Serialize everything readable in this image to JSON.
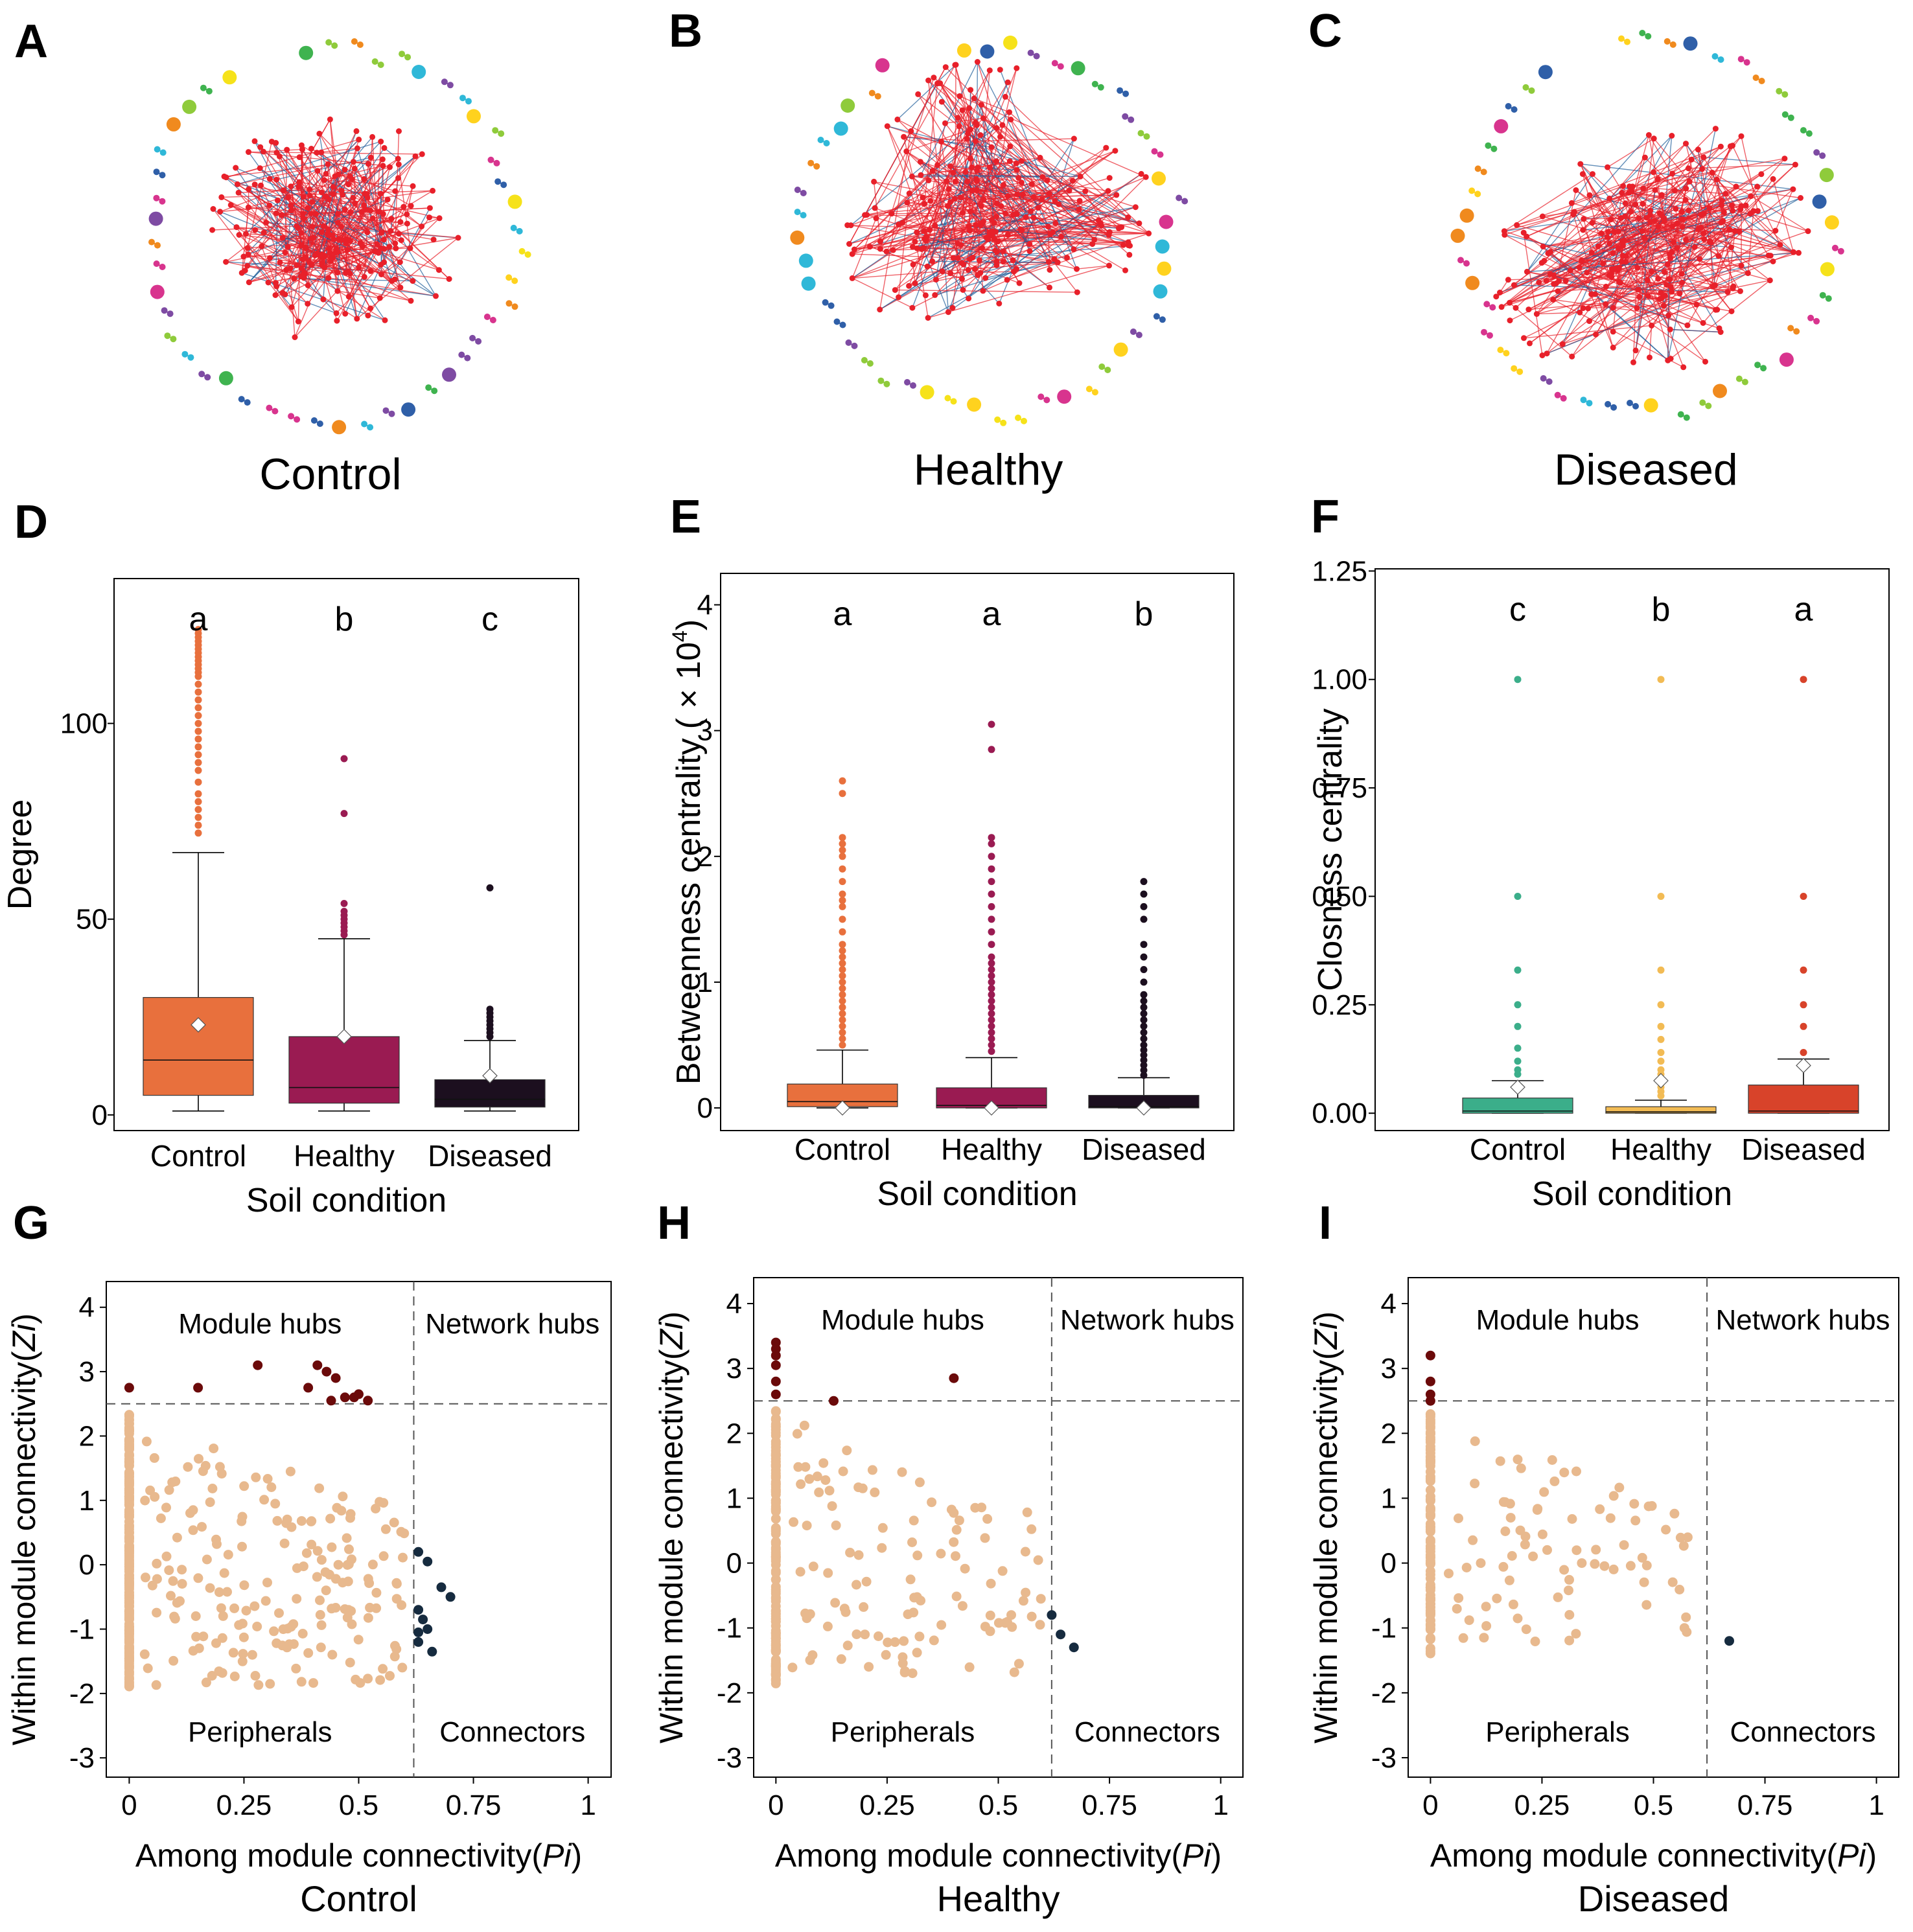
{
  "colors": {
    "control": "#E8703D",
    "healthy": "#9A1B52",
    "diseased": "#1C0F1F",
    "closeness_control": "#3BAE8A",
    "closeness_healthy": "#F2BB54",
    "closeness_diseased": "#D8432A",
    "peripheral": "#E8B98E",
    "module_hub": "#6B0A0A",
    "connector": "#162B3F",
    "network_edge_red": "#E8202A",
    "network_edge_blue": "#1F5E9A"
  },
  "networks": [
    {
      "panel": "A",
      "label": "Control",
      "seed": 11
    },
    {
      "panel": "B",
      "label": "Healthy",
      "seed": 23
    },
    {
      "panel": "C",
      "label": "Diseased",
      "seed": 37
    }
  ],
  "chart_data": [
    {
      "panel": "D",
      "type": "box",
      "categories": [
        "Control",
        "Healthy",
        "Diseased"
      ],
      "xlabel": "Soil condition",
      "ylabel": "Degree",
      "ylim": [
        -4,
        137
      ],
      "yticks": [
        0,
        50,
        100
      ],
      "ytick_labels": [
        "0",
        "50",
        "100"
      ],
      "letters": [
        "a",
        "b",
        "c"
      ],
      "boxes": [
        {
          "q1": 5,
          "median": 14,
          "q3": 30,
          "whisker_low": 1,
          "whisker_high": 67,
          "mean": 23,
          "outliers": [
            72,
            74,
            76,
            78,
            80,
            82,
            85,
            88,
            90,
            92,
            94,
            96,
            98,
            100,
            102,
            104,
            106,
            108,
            110,
            112,
            113,
            114,
            115,
            116,
            117,
            118,
            119,
            120,
            121,
            122,
            123,
            124
          ]
        },
        {
          "q1": 3,
          "median": 7,
          "q3": 20,
          "whisker_low": 1,
          "whisker_high": 45,
          "mean": 20,
          "outliers": [
            46,
            47,
            48,
            49,
            50,
            51,
            52,
            54,
            77,
            91
          ]
        },
        {
          "q1": 2,
          "median": 4,
          "q3": 9,
          "whisker_low": 1,
          "whisker_high": 19,
          "mean": 10,
          "outliers": [
            20,
            21,
            22,
            23,
            24,
            25,
            26,
            27,
            58
          ]
        }
      ]
    },
    {
      "panel": "E",
      "type": "box",
      "categories": [
        "Control",
        "Healthy",
        "Diseased"
      ],
      "xlabel": "Soil condition",
      "ylabel": "Betweenness  centrality",
      "ylabel_suffix": "( × 10",
      "ylabel_exp": "4",
      "ylabel_close": ")",
      "ylim": [
        -0.18,
        4.25
      ],
      "yticks": [
        0,
        1,
        2,
        3,
        4
      ],
      "ytick_labels": [
        "0",
        "1",
        "2",
        "3",
        "4"
      ],
      "letters": [
        "a",
        "a",
        "b"
      ],
      "boxes": [
        {
          "q1": 0.01,
          "median": 0.05,
          "q3": 0.19,
          "whisker_low": 0,
          "whisker_high": 0.46,
          "mean": 0.0,
          "outliers": [
            0.5,
            0.55,
            0.6,
            0.65,
            0.7,
            0.75,
            0.8,
            0.85,
            0.9,
            0.95,
            1.0,
            1.05,
            1.1,
            1.15,
            1.2,
            1.25,
            1.3,
            1.4,
            1.5,
            1.6,
            1.65,
            1.7,
            1.8,
            1.9,
            2.0,
            2.05,
            2.1,
            2.15,
            2.5,
            2.6
          ]
        },
        {
          "q1": 0.0,
          "median": 0.02,
          "q3": 0.16,
          "whisker_low": 0,
          "whisker_high": 0.4,
          "mean": 0.0,
          "outliers": [
            0.45,
            0.5,
            0.55,
            0.6,
            0.65,
            0.7,
            0.75,
            0.8,
            0.85,
            0.9,
            0.95,
            1.0,
            1.05,
            1.1,
            1.15,
            1.2,
            1.3,
            1.4,
            1.5,
            1.6,
            1.7,
            1.8,
            1.9,
            2.0,
            2.1,
            2.15,
            2.85,
            3.05
          ]
        },
        {
          "q1": 0.0,
          "median": 0.01,
          "q3": 0.1,
          "whisker_low": 0,
          "whisker_high": 0.24,
          "mean": 0.0,
          "outliers": [
            0.26,
            0.3,
            0.34,
            0.38,
            0.42,
            0.46,
            0.5,
            0.55,
            0.6,
            0.65,
            0.7,
            0.75,
            0.8,
            0.85,
            0.9,
            1.0,
            1.1,
            1.2,
            1.3,
            1.5,
            1.6,
            1.7,
            1.8
          ]
        }
      ]
    },
    {
      "panel": "F",
      "type": "box",
      "categories": [
        "Control",
        "Healthy",
        "Diseased"
      ],
      "xlabel": "Soil condition",
      "ylabel": "Closness centrality",
      "ylim": [
        -0.04,
        1.255
      ],
      "yticks": [
        0,
        0.25,
        0.5,
        0.75,
        1.0,
        1.25
      ],
      "ytick_labels": [
        "0.00",
        "0.25",
        "0.50",
        "0.75",
        "1.00",
        "1.25"
      ],
      "letters": [
        "c",
        "b",
        "a"
      ],
      "boxes": [
        {
          "q1": 0.0,
          "median": 0.005,
          "q3": 0.035,
          "whisker_low": 0,
          "whisker_high": 0.075,
          "mean": 0.06,
          "outliers": [
            0.09,
            0.1,
            0.12,
            0.15,
            0.2,
            0.25,
            0.33,
            0.5,
            1.0
          ]
        },
        {
          "q1": 0.0,
          "median": 0.003,
          "q3": 0.015,
          "whisker_low": 0,
          "whisker_high": 0.03,
          "mean": 0.075,
          "outliers": [
            0.04,
            0.05,
            0.06,
            0.07,
            0.08,
            0.09,
            0.1,
            0.12,
            0.14,
            0.17,
            0.2,
            0.25,
            0.33,
            0.5,
            1.0
          ]
        },
        {
          "q1": 0.0,
          "median": 0.005,
          "q3": 0.065,
          "whisker_low": 0,
          "whisker_high": 0.125,
          "mean": 0.11,
          "outliers": [
            0.14,
            0.2,
            0.25,
            0.33,
            0.5,
            1.0
          ]
        }
      ]
    },
    {
      "panel": "G",
      "type": "scatter",
      "title": "Control",
      "xlabel": "Among module connectivity",
      "xlabel_italic": "Pi",
      "ylabel": "Within module connectivity",
      "ylabel_italic": "Zi",
      "xlim": [
        -0.05,
        1.05
      ],
      "ylim": [
        -3.3,
        4.4
      ],
      "xticks": [
        0,
        0.25,
        0.5,
        0.75,
        1
      ],
      "xtick_labels": [
        "0",
        "0.25",
        "0.5",
        "0.75",
        "1"
      ],
      "yticks": [
        -3,
        -2,
        -1,
        0,
        1,
        2,
        3,
        4
      ],
      "ytick_labels": [
        "-3",
        "-2",
        "-1",
        "0",
        "1",
        "2",
        "3",
        "4"
      ],
      "thresholds": {
        "zi": 2.5,
        "pi": 0.62
      },
      "quadrants": [
        "Module hubs",
        "Network hubs",
        "Peripherals",
        "Connectors"
      ],
      "module_hubs": [
        [
          0.0,
          2.75
        ],
        [
          0.15,
          2.75
        ],
        [
          0.28,
          3.1
        ],
        [
          0.39,
          2.75
        ],
        [
          0.41,
          3.1
        ],
        [
          0.43,
          3.0
        ],
        [
          0.44,
          2.55
        ],
        [
          0.45,
          2.9
        ],
        [
          0.47,
          2.6
        ],
        [
          0.49,
          2.6
        ],
        [
          0.52,
          2.55
        ],
        [
          0.5,
          2.65
        ]
      ],
      "connectors": [
        [
          0.63,
          0.2
        ],
        [
          0.65,
          0.05
        ],
        [
          0.68,
          -0.35
        ],
        [
          0.7,
          -0.5
        ],
        [
          0.63,
          -0.7
        ],
        [
          0.64,
          -0.85
        ],
        [
          0.63,
          -1.05
        ],
        [
          0.65,
          -1.0
        ],
        [
          0.63,
          -1.2
        ],
        [
          0.66,
          -1.35
        ]
      ],
      "peripheral": {
        "count": 420,
        "seed": 101,
        "zero_column_range": [
          -1.9,
          2.35
        ],
        "spread_range": [
          -1.9,
          2.3
        ],
        "max_pi": 0.6
      }
    },
    {
      "panel": "H",
      "type": "scatter",
      "title": "Healthy",
      "xlabel": "Among module connectivity",
      "xlabel_italic": "Pi",
      "ylabel": "Within module connectivity",
      "ylabel_italic": "Zi",
      "xlim": [
        -0.05,
        1.05
      ],
      "ylim": [
        -3.3,
        4.4
      ],
      "xticks": [
        0,
        0.25,
        0.5,
        0.75,
        1
      ],
      "xtick_labels": [
        "0",
        "0.25",
        "0.5",
        "0.75",
        "1"
      ],
      "yticks": [
        -3,
        -2,
        -1,
        0,
        1,
        2,
        3,
        4
      ],
      "ytick_labels": [
        "-3",
        "-2",
        "-1",
        "0",
        "1",
        "2",
        "3",
        "4"
      ],
      "thresholds": {
        "zi": 2.5,
        "pi": 0.62
      },
      "quadrants": [
        "Module hubs",
        "Network hubs",
        "Peripherals",
        "Connectors"
      ],
      "module_hubs": [
        [
          0.0,
          3.4
        ],
        [
          0.0,
          3.3
        ],
        [
          0.0,
          3.2
        ],
        [
          0.0,
          3.05
        ],
        [
          0.0,
          2.8
        ],
        [
          0.0,
          2.6
        ],
        [
          0.13,
          2.5
        ],
        [
          0.4,
          2.85
        ]
      ],
      "connectors": [
        [
          0.62,
          -0.8
        ],
        [
          0.64,
          -1.1
        ],
        [
          0.67,
          -1.3
        ]
      ],
      "peripheral": {
        "count": 240,
        "seed": 202,
        "zero_column_range": [
          -1.9,
          2.4
        ],
        "spread_range": [
          -1.75,
          2.35
        ],
        "max_pi": 0.6
      }
    },
    {
      "panel": "I",
      "type": "scatter",
      "title": "Diseased",
      "xlabel": "Among module connectivity",
      "xlabel_italic": "Pi",
      "ylabel": "Within module connectivity",
      "ylabel_italic": "Zi",
      "xlim": [
        -0.05,
        1.05
      ],
      "ylim": [
        -3.3,
        4.4
      ],
      "xticks": [
        0,
        0.25,
        0.5,
        0.75,
        1
      ],
      "xtick_labels": [
        "0",
        "0.25",
        "0.5",
        "0.75",
        "1"
      ],
      "yticks": [
        -3,
        -2,
        -1,
        0,
        1,
        2,
        3,
        4
      ],
      "ytick_labels": [
        "-3",
        "-2",
        "-1",
        "0",
        "1",
        "2",
        "3",
        "4"
      ],
      "thresholds": {
        "zi": 2.5,
        "pi": 0.62
      },
      "quadrants": [
        "Module hubs",
        "Network hubs",
        "Peripherals",
        "Connectors"
      ],
      "module_hubs": [
        [
          0.0,
          3.2
        ],
        [
          0.0,
          2.8
        ],
        [
          0.0,
          2.6
        ],
        [
          0.0,
          2.5
        ]
      ],
      "connectors": [
        [
          0.67,
          -1.2
        ]
      ],
      "peripheral": {
        "count": 180,
        "seed": 303,
        "zero_column_range": [
          -1.45,
          2.3
        ],
        "spread_range": [
          -1.3,
          2.25
        ],
        "max_pi": 0.6
      }
    }
  ]
}
